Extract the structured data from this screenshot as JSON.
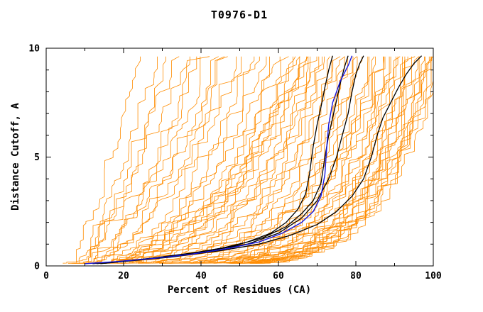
{
  "chart_data": {
    "type": "line",
    "title": "T0976-D1",
    "xlabel": "Percent of Residues (CA)",
    "ylabel": "Distance Cutoff, A",
    "xlim": [
      0,
      100
    ],
    "ylim": [
      0,
      10
    ],
    "x_ticks": [
      0,
      20,
      40,
      60,
      80,
      100
    ],
    "y_ticks": [
      0,
      5,
      10
    ],
    "x_minor_step": 10,
    "y_minor_step": 1,
    "grid": "off",
    "legend": "none",
    "axis_color": "#000000",
    "orange_model_curves": {
      "color": "#ff8c00",
      "stroke_width": 0.8,
      "params_format": [
        "x_start_pct",
        "x_top_pct",
        "shape_exponent",
        "jitter_pct",
        "seed"
      ],
      "params": [
        [
          5,
          25,
          0.9,
          3,
          1
        ],
        [
          6,
          28,
          0.8,
          3,
          2
        ],
        [
          5,
          30,
          0.75,
          4,
          3
        ],
        [
          7,
          33,
          0.7,
          3,
          4
        ],
        [
          6,
          35,
          0.85,
          4,
          5
        ],
        [
          8,
          38,
          0.6,
          3,
          6
        ],
        [
          5,
          40,
          0.7,
          4,
          7
        ],
        [
          7,
          42,
          0.65,
          3,
          8
        ],
        [
          6,
          44,
          0.6,
          4,
          9
        ],
        [
          8,
          45,
          0.55,
          3,
          10
        ],
        [
          6,
          46,
          0.5,
          3,
          11
        ],
        [
          7,
          48,
          0.45,
          4,
          12
        ],
        [
          5,
          50,
          0.5,
          3,
          13
        ],
        [
          8,
          52,
          0.42,
          3,
          14
        ],
        [
          6,
          54,
          0.45,
          4,
          15
        ],
        [
          7,
          56,
          0.4,
          3,
          16
        ],
        [
          5,
          58,
          0.42,
          4,
          17
        ],
        [
          8,
          60,
          0.38,
          3,
          18
        ],
        [
          6,
          61,
          0.4,
          3,
          19
        ],
        [
          7,
          62,
          0.36,
          4,
          20
        ],
        [
          5,
          63,
          0.38,
          3,
          21
        ],
        [
          8,
          64,
          0.34,
          3,
          22
        ],
        [
          6,
          65,
          0.36,
          4,
          23
        ],
        [
          7,
          66,
          0.32,
          3,
          24
        ],
        [
          5,
          67,
          0.34,
          3,
          25
        ],
        [
          8,
          68,
          0.3,
          4,
          26
        ],
        [
          6,
          69,
          0.32,
          3,
          27
        ],
        [
          7,
          70,
          0.3,
          3,
          28
        ],
        [
          6,
          70,
          0.45,
          4,
          29
        ],
        [
          8,
          69,
          0.5,
          3,
          30
        ],
        [
          6,
          71,
          0.28,
          3,
          31
        ],
        [
          7,
          72,
          0.26,
          3,
          32
        ],
        [
          5,
          73,
          0.28,
          4,
          33
        ],
        [
          8,
          74,
          0.24,
          3,
          34
        ],
        [
          6,
          75,
          0.26,
          3,
          35
        ],
        [
          7,
          76,
          0.22,
          4,
          36
        ],
        [
          5,
          77,
          0.24,
          3,
          37
        ],
        [
          8,
          78,
          0.22,
          3,
          38
        ],
        [
          6,
          79,
          0.2,
          4,
          39
        ],
        [
          7,
          80,
          0.22,
          3,
          40
        ],
        [
          5,
          81,
          0.2,
          3,
          41
        ],
        [
          8,
          82,
          0.19,
          4,
          42
        ],
        [
          6,
          83,
          0.2,
          3,
          43
        ],
        [
          7,
          84,
          0.18,
          3,
          44
        ],
        [
          5,
          85,
          0.19,
          4,
          45
        ],
        [
          8,
          86,
          0.18,
          3,
          46
        ],
        [
          6,
          87,
          0.17,
          3,
          47
        ],
        [
          7,
          88,
          0.18,
          4,
          48
        ],
        [
          5,
          89,
          0.17,
          3,
          49
        ],
        [
          8,
          90,
          0.16,
          3,
          50
        ],
        [
          6,
          91,
          0.17,
          4,
          51
        ],
        [
          7,
          92,
          0.16,
          3,
          52
        ],
        [
          5,
          93,
          0.15,
          3,
          53
        ],
        [
          8,
          94,
          0.16,
          4,
          54
        ],
        [
          6,
          95,
          0.15,
          3,
          55
        ],
        [
          7,
          96,
          0.16,
          3,
          56
        ],
        [
          5,
          97,
          0.15,
          4,
          57
        ],
        [
          8,
          98,
          0.15,
          3,
          58
        ],
        [
          6,
          99,
          0.15,
          3,
          59
        ],
        [
          7,
          100,
          0.15,
          4,
          60
        ],
        [
          9,
          85,
          0.22,
          4,
          61
        ],
        [
          10,
          88,
          0.2,
          4,
          62
        ],
        [
          9,
          92,
          0.18,
          4,
          63
        ],
        [
          10,
          95,
          0.17,
          4,
          64
        ],
        [
          9,
          97,
          0.16,
          4,
          65
        ],
        [
          11,
          90,
          0.19,
          4,
          66
        ],
        [
          12,
          93,
          0.17,
          4,
          67
        ],
        [
          11,
          96,
          0.16,
          4,
          68
        ],
        [
          12,
          98,
          0.15,
          4,
          69
        ],
        [
          10,
          100,
          0.16,
          4,
          70
        ]
      ]
    },
    "black_reference_curves": {
      "color": "#000000",
      "stroke_width": 1.3,
      "curves": [
        [
          [
            12,
            0.1
          ],
          [
            25,
            0.3
          ],
          [
            35,
            0.5
          ],
          [
            45,
            0.8
          ],
          [
            52,
            1.1
          ],
          [
            58,
            1.5
          ],
          [
            62,
            2.0
          ],
          [
            65,
            2.6
          ],
          [
            67,
            3.3
          ],
          [
            68,
            4.2
          ],
          [
            69,
            5.5
          ],
          [
            70,
            6.5
          ],
          [
            71,
            7.3
          ],
          [
            72,
            8.2
          ],
          [
            73,
            9.0
          ],
          [
            74,
            9.65
          ]
        ],
        [
          [
            13,
            0.1
          ],
          [
            27,
            0.35
          ],
          [
            38,
            0.6
          ],
          [
            48,
            0.9
          ],
          [
            56,
            1.3
          ],
          [
            62,
            1.8
          ],
          [
            66,
            2.4
          ],
          [
            69,
            3.0
          ],
          [
            71,
            3.8
          ],
          [
            72,
            5.0
          ],
          [
            73,
            6.0
          ],
          [
            74,
            6.8
          ],
          [
            75,
            7.6
          ],
          [
            76,
            8.4
          ],
          [
            77,
            9.1
          ],
          [
            78,
            9.65
          ]
        ],
        [
          [
            14,
            0.1
          ],
          [
            30,
            0.4
          ],
          [
            42,
            0.7
          ],
          [
            52,
            1.0
          ],
          [
            60,
            1.5
          ],
          [
            66,
            2.2
          ],
          [
            70,
            3.0
          ],
          [
            73,
            4.0
          ],
          [
            75,
            5.0
          ],
          [
            76.5,
            6.0
          ],
          [
            78,
            7.0
          ],
          [
            79,
            8.0
          ],
          [
            80,
            8.8
          ],
          [
            81,
            9.3
          ],
          [
            82,
            9.65
          ]
        ],
        [
          [
            15,
            0.12
          ],
          [
            32,
            0.4
          ],
          [
            45,
            0.7
          ],
          [
            55,
            1.0
          ],
          [
            63,
            1.4
          ],
          [
            70,
            1.9
          ],
          [
            75,
            2.5
          ],
          [
            79,
            3.2
          ],
          [
            82,
            4.0
          ],
          [
            84,
            5.0
          ],
          [
            85.5,
            6.0
          ],
          [
            87,
            6.8
          ],
          [
            89,
            7.5
          ],
          [
            91,
            8.2
          ],
          [
            93,
            8.8
          ],
          [
            95,
            9.3
          ],
          [
            97,
            9.65
          ]
        ]
      ]
    },
    "blue_highlight_curve": {
      "color": "#1515e0",
      "stroke_width": 1.4,
      "points": [
        [
          10,
          0.1
        ],
        [
          18,
          0.2
        ],
        [
          28,
          0.35
        ],
        [
          38,
          0.55
        ],
        [
          47,
          0.8
        ],
        [
          55,
          1.1
        ],
        [
          61,
          1.5
        ],
        [
          66,
          2.0
        ],
        [
          69,
          2.5
        ],
        [
          71,
          3.2
        ],
        [
          72,
          4.2
        ],
        [
          72.5,
          5.5
        ],
        [
          73,
          6.5
        ],
        [
          74,
          7.5
        ],
        [
          76,
          8.5
        ],
        [
          78,
          9.2
        ],
        [
          79,
          9.65
        ]
      ]
    }
  }
}
